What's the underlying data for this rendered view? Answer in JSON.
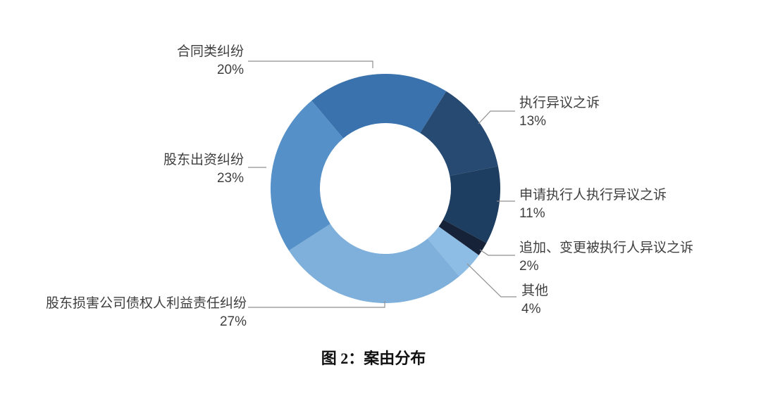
{
  "caption": "图 2：案由分布",
  "chart_data": {
    "type": "pie",
    "subtype": "donut",
    "title": "图 2：案由分布",
    "direction": "clockwise",
    "start_angle_deg_from_top": -40,
    "inner_radius_ratio": 0.57,
    "legend_position": "none",
    "unit": "percent",
    "slices": [
      {
        "label": "合同类纠纷",
        "value": 20,
        "pct_label": "20%",
        "color": "#3A72AD"
      },
      {
        "label": "执行异议之诉",
        "value": 13,
        "pct_label": "13%",
        "color": "#274A72"
      },
      {
        "label": "申请执行人执行异议之诉",
        "value": 11,
        "pct_label": "11%",
        "color": "#1D3D61"
      },
      {
        "label": "追加、变更被执行人异议之诉",
        "value": 2,
        "pct_label": "2%",
        "color": "#152238"
      },
      {
        "label": "其他",
        "value": 4,
        "pct_label": "4%",
        "color": "#8DBDE4"
      },
      {
        "label": "股东损害公司债权人利益责任纠纷",
        "value": 27,
        "pct_label": "27%",
        "color": "#7EB0DB"
      },
      {
        "label": "股东出资纠纷",
        "value": 23,
        "pct_label": "23%",
        "color": "#5590C8"
      }
    ],
    "leader_line_color": "#8f8f8f",
    "text_color": "#3f3f3f"
  }
}
